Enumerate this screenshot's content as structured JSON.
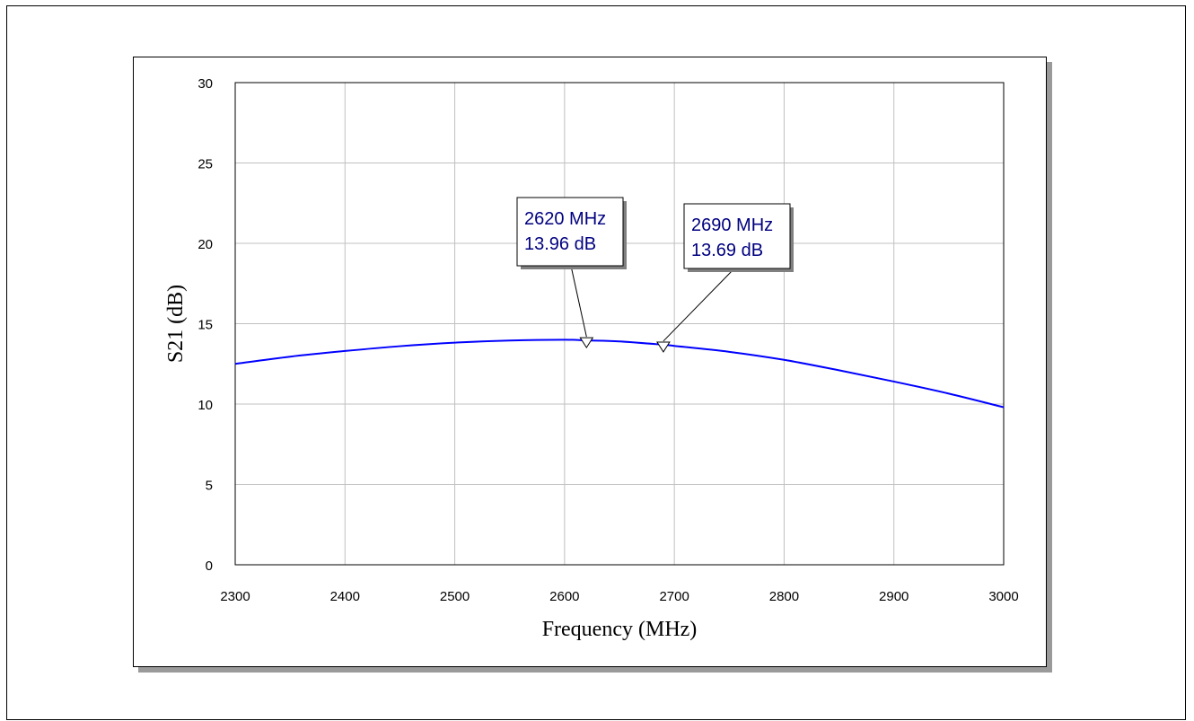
{
  "chart_data": {
    "type": "line",
    "xlabel": "Frequency (MHz)",
    "ylabel": "S21 (dB)",
    "xlim": [
      2300,
      3000
    ],
    "ylim": [
      0,
      30
    ],
    "x_ticks": [
      2300,
      2400,
      2500,
      2600,
      2700,
      2800,
      2900,
      3000
    ],
    "y_ticks": [
      0,
      5,
      10,
      15,
      20,
      25,
      30
    ],
    "grid": true,
    "series": [
      {
        "color": "#0000ff",
        "x": [
          2300,
          2350,
          2400,
          2450,
          2500,
          2550,
          2600,
          2620,
          2650,
          2690,
          2700,
          2750,
          2800,
          2850,
          2900,
          2950,
          3000
        ],
        "y": [
          12.5,
          12.95,
          13.3,
          13.6,
          13.82,
          13.95,
          14.0,
          13.96,
          13.9,
          13.69,
          13.62,
          13.25,
          12.75,
          12.1,
          11.4,
          10.65,
          9.8
        ]
      }
    ],
    "markers": [
      {
        "x": 2620,
        "y": 13.96,
        "line1": "2620 MHz",
        "line2": "13.96 dB"
      },
      {
        "x": 2690,
        "y": 13.69,
        "line1": "2690 MHz",
        "line2": "13.69 dB"
      }
    ]
  }
}
